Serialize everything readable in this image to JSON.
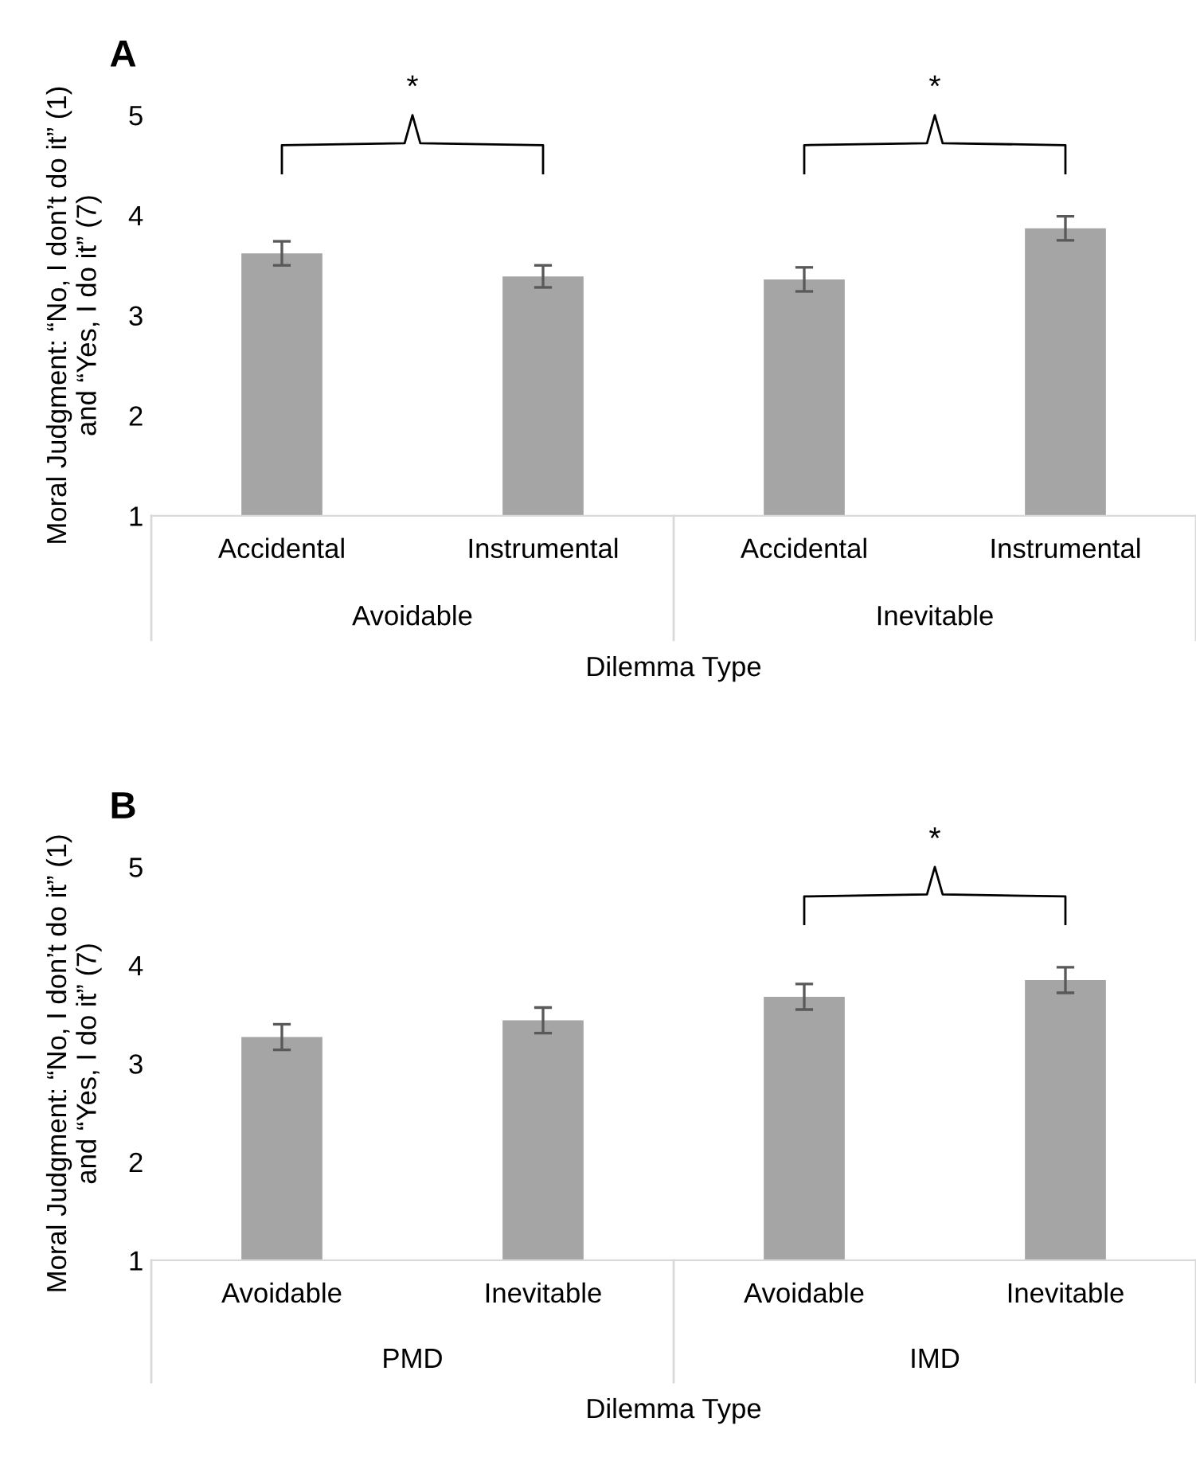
{
  "chart_data": [
    {
      "type": "bar",
      "title": "A",
      "ylabel": "Moral Judgment: “No, I don’t do it” (1)\nand “Yes, I do it” (7)",
      "xlabel": "Dilemma Type",
      "categories": [
        "Accidental",
        "Instrumental",
        "Accidental",
        "Instrumental"
      ],
      "values": [
        3.62,
        3.39,
        3.36,
        3.87
      ],
      "errors": [
        0.12,
        0.11,
        0.12,
        0.12
      ],
      "color": "#a5a5a5",
      "ylim": [
        1,
        5
      ],
      "yticks": [
        1,
        2,
        3,
        4,
        5
      ],
      "grid": false,
      "legend": false,
      "annotations": [
        "Avoidable",
        "Inevitable",
        "*",
        "*"
      ]
    },
    {
      "type": "bar",
      "title": "B",
      "ylabel": "Moral Judgment: “No, I don’t do it” (1)\nand “Yes, I do it” (7)",
      "xlabel": "Dilemma Type",
      "categories": [
        "Avoidable",
        "Inevitable",
        "Avoidable",
        "Inevitable"
      ],
      "values": [
        3.27,
        3.44,
        3.68,
        3.85
      ],
      "errors": [
        0.13,
        0.13,
        0.13,
        0.13
      ],
      "color": "#a5a5a5",
      "ylim": [
        1,
        5
      ],
      "yticks": [
        1,
        2,
        3,
        4,
        5
      ],
      "grid": false,
      "legend": false,
      "annotations": [
        "PMD",
        "IMD",
        "*"
      ]
    }
  ]
}
